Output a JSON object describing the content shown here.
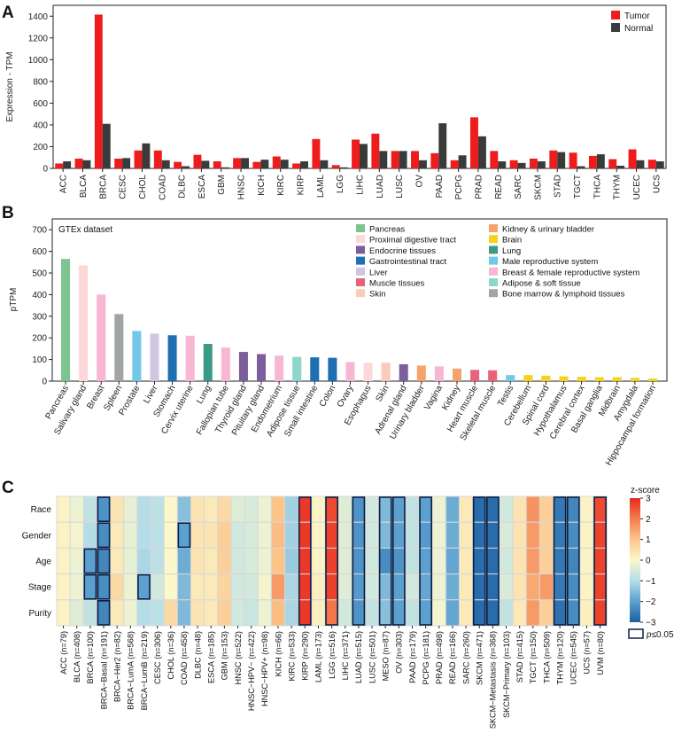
{
  "panels": {
    "a": {
      "label": "A"
    },
    "b": {
      "label": "B"
    },
    "c": {
      "label": "C"
    }
  },
  "chart_data": [
    {
      "type": "bar",
      "panel": "A",
      "title": "",
      "xlabel": "",
      "ylabel": "Expression - TPM",
      "ylim": [
        0,
        1500
      ],
      "yticks": [
        0,
        200,
        400,
        600,
        800,
        1000,
        1200,
        1400
      ],
      "legend_position": "top-right",
      "categories": [
        "ACC",
        "BLCA",
        "BRCA",
        "CESC",
        "CHOL",
        "COAD",
        "DLBC",
        "ESCA",
        "GBM",
        "HNSC",
        "KICH",
        "KIRC",
        "KIRP",
        "LAML",
        "LGG",
        "LIHC",
        "LUAD",
        "LUSC",
        "OV",
        "PAAD",
        "PCPG",
        "PRAD",
        "READ",
        "SARC",
        "SKCM",
        "STAD",
        "TGCT",
        "THCA",
        "THYM",
        "UCEC",
        "UCS"
      ],
      "series": [
        {
          "name": "Tumor",
          "color": "#ee1c1c",
          "values": [
            45,
            90,
            1415,
            90,
            165,
            165,
            60,
            125,
            65,
            95,
            60,
            110,
            45,
            270,
            30,
            265,
            320,
            160,
            160,
            140,
            75,
            470,
            160,
            75,
            90,
            165,
            145,
            115,
            85,
            175,
            80
          ]
        },
        {
          "name": "Normal",
          "color": "#3a3a3a",
          "values": [
            65,
            75,
            410,
            95,
            230,
            75,
            20,
            70,
            10,
            95,
            80,
            80,
            65,
            75,
            10,
            225,
            160,
            160,
            75,
            415,
            120,
            295,
            65,
            50,
            65,
            150,
            20,
            130,
            25,
            75,
            65
          ]
        }
      ]
    },
    {
      "type": "bar",
      "panel": "B",
      "title": "GTEx dataset",
      "xlabel": "",
      "ylabel": "pTPM",
      "ylim": [
        0,
        750
      ],
      "yticks": [
        0,
        100,
        200,
        300,
        400,
        500,
        600,
        700
      ],
      "legend_position": "top-right",
      "categories": [
        "Pancreas",
        "Salivary gland",
        "Breast",
        "Spleen",
        "Prostate",
        "Liver",
        "Stomach",
        "Cervix uterine",
        "Lung",
        "Fallopian tube",
        "Thyroid gland",
        "Pituitary gland",
        "Endometrium",
        "Adipose tissue",
        "Small intestine",
        "Colon",
        "Ovary",
        "Esophagus",
        "Skin",
        "Adrenal gland",
        "Urinary bladder",
        "Vagina",
        "Kidney",
        "Heart muscle",
        "Skeletal muscle",
        "Testis",
        "Cerebellum",
        "Spinal cord",
        "Hypothalamus",
        "Cerebral cortex",
        "Basal ganglia",
        "Midbrain",
        "Amygdala",
        "Hippocampal formation"
      ],
      "values": [
        565,
        535,
        400,
        310,
        232,
        220,
        212,
        210,
        172,
        155,
        135,
        125,
        118,
        112,
        110,
        108,
        88,
        85,
        85,
        78,
        72,
        68,
        58,
        52,
        50,
        28,
        28,
        25,
        22,
        20,
        18,
        18,
        15,
        12
      ],
      "bar_groups": [
        "pancreas",
        "prox",
        "breast",
        "bone",
        "male",
        "liver",
        "gi",
        "breast",
        "lung",
        "breast",
        "endo",
        "endo",
        "breast",
        "adipose",
        "gi",
        "gi",
        "breast",
        "prox",
        "skin",
        "endo",
        "kidney",
        "breast",
        "kidney",
        "muscle",
        "muscle",
        "male",
        "brain",
        "brain",
        "brain",
        "brain",
        "brain",
        "brain",
        "brain",
        "brain"
      ],
      "legend": [
        {
          "key": "pancreas",
          "label": "Pancreas",
          "color": "#7cc490"
        },
        {
          "key": "prox",
          "label": "Proximal digestive tract",
          "color": "#fcd8d8"
        },
        {
          "key": "endo",
          "label": "Endocrine tissues",
          "color": "#7c5e9c"
        },
        {
          "key": "gi",
          "label": "Gastrointestinal tract",
          "color": "#1f6fb4"
        },
        {
          "key": "liver",
          "label": "Liver",
          "color": "#cfc6e0"
        },
        {
          "key": "muscle",
          "label": "Muscle tissues",
          "color": "#e8637a"
        },
        {
          "key": "skin",
          "label": "Skin",
          "color": "#f9cbbb"
        },
        {
          "key": "kidney",
          "label": "Kidney & urinary bladder",
          "color": "#f5a36c"
        },
        {
          "key": "brain",
          "label": "Brain",
          "color": "#f4d21e"
        },
        {
          "key": "lung",
          "label": "Lung",
          "color": "#3a9a86"
        },
        {
          "key": "male",
          "label": "Male reproductive system",
          "color": "#72c7ea"
        },
        {
          "key": "breast",
          "label": "Breast & female reproductive system",
          "color": "#f7b6d2"
        },
        {
          "key": "adipose",
          "label": "Adipose & soft tissue",
          "color": "#8dd6c9"
        },
        {
          "key": "bone",
          "label": "Bone marrow & lymphoid tissues",
          "color": "#a0a4a4"
        }
      ]
    },
    {
      "type": "heatmap",
      "panel": "C",
      "title": "",
      "rows": [
        "Race",
        "Gender",
        "Age",
        "Stage",
        "Purity"
      ],
      "columns": [
        "ACC (n=79)",
        "BLCA (n=408)",
        "BRCA (n=100)",
        "BRCA−Basal (n=191)",
        "BRCA−Her2 (n=82)",
        "BRCA−LumA (n=568)",
        "BRCA−LumB (n=219)",
        "CESC (n=306)",
        "CHOL (n=36)",
        "COAD (n=458)",
        "DLBC (n=48)",
        "ESCA (n=185)",
        "GBM (n=153)",
        "HNSC (n=522)",
        "HNSC−HPV− (n=422)",
        "HNSC−HPV+ (n=98)",
        "KICH (n=66)",
        "KIRC (n=533)",
        "KIRP (n=290)",
        "LAML (n=173)",
        "LGG (n=516)",
        "LIHC (n=371)",
        "LUAD (n=515)",
        "LUSC (n=501)",
        "MESO (n=87)",
        "OV (n=303)",
        "PAAD (n=179)",
        "PCPG (n=181)",
        "PRAD (n=498)",
        "READ (n=166)",
        "SARC (n=260)",
        "SKCM (n=471)",
        "SKCM−Metastasis (n=368)",
        "SKCM−Primary (n=103)",
        "STAD (n=415)",
        "TGCT (n=150)",
        "THCA (n=509)",
        "THYM (n=120)",
        "UCEC (n=545)",
        "UCS (n=57)",
        "UVM (n=80)"
      ],
      "z_scores": [
        [
          0.1,
          -0.2,
          -0.8,
          -2.2,
          0.4,
          -0.3,
          -1.0,
          -0.9,
          0.0,
          -1.5,
          0.4,
          0.3,
          0.6,
          -0.4,
          -0.5,
          -0.2,
          1.0,
          -1.2,
          2.8,
          0.1,
          2.6,
          -0.4,
          -2.2,
          -0.6,
          -1.6,
          -2.0,
          -0.8,
          -2.0,
          -0.2,
          -1.8,
          0.3,
          -2.8,
          -2.8,
          -0.6,
          0.4,
          1.7,
          0.8,
          -2.6,
          -2.4,
          0.1,
          2.6
        ],
        [
          0.1,
          -0.1,
          -1.0,
          -2.3,
          0.3,
          -0.3,
          -1.0,
          -0.9,
          0.0,
          -2.0,
          0.4,
          0.4,
          0.8,
          -0.6,
          -0.5,
          -0.2,
          1.1,
          -1.2,
          2.8,
          0.1,
          2.7,
          -0.4,
          -2.2,
          -0.6,
          -1.6,
          -2.0,
          -0.8,
          -2.1,
          -0.2,
          -1.8,
          0.3,
          -2.8,
          -2.8,
          -0.5,
          0.4,
          1.6,
          0.8,
          -2.6,
          -2.3,
          0.1,
          2.7
        ],
        [
          0.1,
          -0.2,
          -2.0,
          -2.4,
          0.3,
          -0.3,
          -1.1,
          -0.9,
          0.0,
          -1.8,
          0.4,
          0.3,
          0.8,
          -0.6,
          -0.5,
          -0.2,
          1.0,
          -1.3,
          2.8,
          0.1,
          2.7,
          -0.4,
          -2.2,
          -0.6,
          -2.3,
          -2.2,
          -0.8,
          -2.0,
          -0.2,
          -1.9,
          0.3,
          -2.8,
          -2.8,
          -0.6,
          0.4,
          1.6,
          0.8,
          -2.6,
          -2.4,
          0.1,
          2.7
        ],
        [
          0.1,
          -0.2,
          -2.0,
          -2.3,
          0.6,
          -0.2,
          -2.0,
          -0.6,
          0.0,
          -1.6,
          0.3,
          0.3,
          0.7,
          -0.6,
          -0.6,
          -0.1,
          1.6,
          -1.1,
          2.8,
          0.2,
          2.7,
          -0.4,
          -2.1,
          -0.6,
          -1.6,
          -2.0,
          -0.6,
          -1.9,
          -0.2,
          -1.8,
          0.3,
          -2.8,
          -2.8,
          -0.5,
          0.4,
          1.4,
          1.6,
          -2.6,
          -2.3,
          0.1,
          2.7
        ],
        [
          0.1,
          -0.4,
          -0.8,
          -2.4,
          0.3,
          -0.2,
          -1.0,
          -0.9,
          0.6,
          -1.6,
          0.4,
          0.3,
          0.8,
          -0.6,
          -0.7,
          -0.2,
          1.1,
          -1.1,
          2.8,
          0.2,
          2.1,
          -0.6,
          -2.2,
          -0.8,
          -1.5,
          -2.0,
          -0.8,
          -2.0,
          -0.1,
          -1.9,
          0.3,
          -2.8,
          -2.8,
          -0.8,
          0.3,
          1.6,
          0.8,
          -2.7,
          -2.3,
          0.2,
          2.7
        ]
      ],
      "significant": [
        [
          3
        ],
        [
          3,
          9
        ],
        [
          2,
          3
        ],
        [
          2,
          3,
          6
        ],
        [
          3
        ],
        [
          18,
          20,
          22,
          24,
          25,
          27,
          31,
          32,
          37,
          38,
          40
        ]
      ],
      "significant_all_rows_columns": [
        18,
        20,
        22,
        24,
        25,
        27,
        31,
        32,
        37,
        38,
        40
      ],
      "colorbar": {
        "title": "z-score",
        "range": [
          -3,
          3
        ],
        "ticks": [
          3,
          2,
          1,
          0,
          -1,
          -2,
          -3
        ],
        "tick_labels": [
          "3",
          "2",
          "1",
          "0",
          "−1",
          "−2",
          "−3"
        ]
      },
      "significance_legend": {
        "label": "p≤0.05",
        "p_symbol": "p",
        "rest": "≤0.05"
      }
    }
  ]
}
